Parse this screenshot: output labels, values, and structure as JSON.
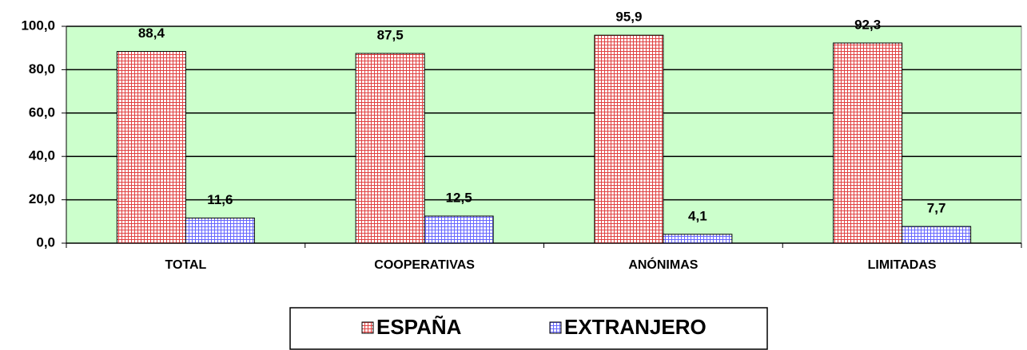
{
  "chart_data": {
    "type": "bar",
    "categories": [
      "TOTAL",
      "COOPERATIVAS",
      "ANÓNIMAS",
      "LIMITADAS"
    ],
    "series": [
      {
        "name": "ESPAÑA",
        "color": "#e04040",
        "values": [
          88.4,
          87.5,
          95.9,
          92.3
        ],
        "value_labels": [
          "88,4",
          "87,5",
          "95,9",
          "92,3"
        ]
      },
      {
        "name": "EXTRANJERO",
        "color": "#6666ff",
        "values": [
          11.6,
          12.5,
          4.1,
          7.7
        ],
        "value_labels": [
          "11,6",
          "12,5",
          "4,1",
          "7,7"
        ]
      }
    ],
    "ylim": [
      0,
      100
    ],
    "yticks": [
      {
        "value": 0,
        "label": "0,0"
      },
      {
        "value": 20,
        "label": "20,0"
      },
      {
        "value": 40,
        "label": "40,0"
      },
      {
        "value": 60,
        "label": "60,0"
      },
      {
        "value": 80,
        "label": "80,0"
      },
      {
        "value": 100,
        "label": "100,0"
      }
    ],
    "grid": true,
    "legend": "bottom",
    "background": "#ccffcc"
  }
}
